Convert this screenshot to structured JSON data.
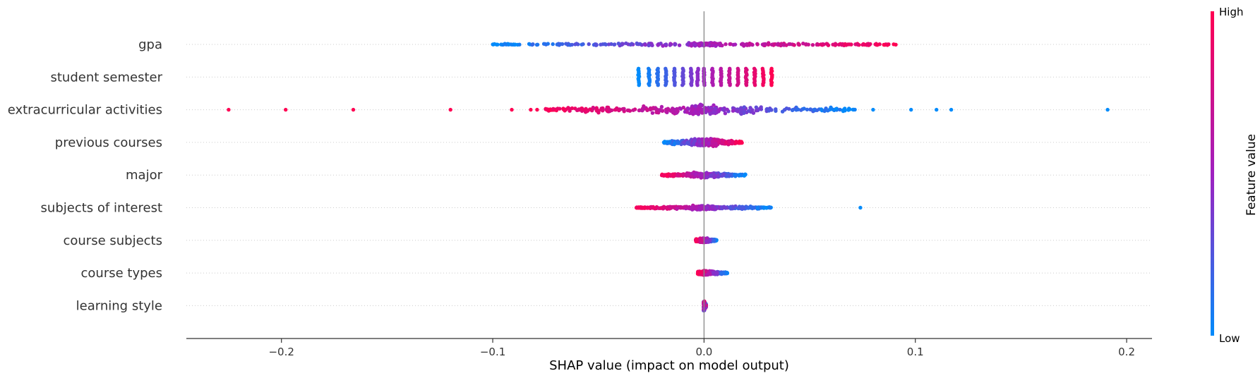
{
  "chart_data": {
    "type": "scatter",
    "subtype": "shap-beeswarm",
    "xlabel": "SHAP value (impact on model output)",
    "xlim": [
      -0.245,
      0.212
    ],
    "xticks": [
      -0.2,
      -0.1,
      0.0,
      0.1,
      0.2
    ],
    "xtick_labels": [
      "−0.2",
      "−0.1",
      "0.0",
      "0.1",
      "0.2"
    ],
    "grid": "horizontal dotted guides per feature",
    "colorbar": {
      "title": "Feature value",
      "high_label": "High",
      "low_label": "Low",
      "low_color": "#008bfb",
      "mid_color": "#a020c0",
      "high_color": "#ff0052",
      "placement": "right"
    },
    "features": [
      {
        "name": "gpa",
        "min": -0.1,
        "max": 0.093,
        "trend": "increasing",
        "style": "dense",
        "spread": 3,
        "outliers": []
      },
      {
        "name": "student semester",
        "min": -0.032,
        "max": 0.033,
        "trend": "increasing",
        "style": "clusters",
        "cluster_x": [
          -0.031,
          -0.026,
          -0.022,
          -0.018,
          -0.014,
          -0.01,
          -0.006,
          -0.003,
          0.0,
          0.004,
          0.008,
          0.012,
          0.016,
          0.02,
          0.024,
          0.028,
          0.032
        ]
      },
      {
        "name": "extracurricular activities",
        "min": -0.075,
        "max": 0.072,
        "trend": "decreasing",
        "style": "dense",
        "spread": 9,
        "outliers": [
          -0.225,
          -0.198,
          -0.166,
          -0.12,
          -0.091,
          -0.082,
          -0.079,
          0.08,
          0.098,
          0.11,
          0.117,
          0.191
        ]
      },
      {
        "name": "previous courses",
        "min": -0.019,
        "max": 0.018,
        "trend": "increasing",
        "style": "dense",
        "spread": 7,
        "outliers": []
      },
      {
        "name": "major",
        "min": -0.02,
        "max": 0.02,
        "trend": "decreasing",
        "style": "dense",
        "spread": 5,
        "outliers": []
      },
      {
        "name": "subjects of interest",
        "min": -0.032,
        "max": 0.032,
        "trend": "decreasing",
        "style": "dense",
        "spread": 4,
        "outliers": [
          0.074
        ]
      },
      {
        "name": "course subjects",
        "min": -0.004,
        "max": 0.006,
        "trend": "decreasing",
        "style": "dense",
        "spread": 4,
        "outliers": []
      },
      {
        "name": "course types",
        "min": -0.003,
        "max": 0.011,
        "trend": "decreasing",
        "style": "dense",
        "spread": 4,
        "outliers": []
      },
      {
        "name": "learning style",
        "min": 0.0,
        "max": 0.001,
        "trend": "mixed",
        "style": "dense",
        "spread": 9,
        "outliers": []
      }
    ]
  }
}
